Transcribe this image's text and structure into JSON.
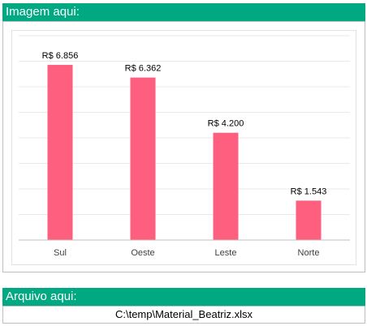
{
  "sections": {
    "image_header": "Imagem aqui:",
    "file_header": "Arquivo aqui:",
    "file_path": "C:\\temp\\Material_Beatriz.xlsx"
  },
  "colors": {
    "header_bg": "#00A982",
    "bar_fill": "#FF5F7E",
    "gridline": "#e9e9e9",
    "axis": "#bfbfbf"
  },
  "chart_data": {
    "type": "bar",
    "categories": [
      "Sul",
      "Oeste",
      "Leste",
      "Norte"
    ],
    "values": [
      6856,
      6362,
      4200,
      1543
    ],
    "data_labels": [
      "R$ 6.856",
      "R$ 6.362",
      "R$ 4.200",
      "R$ 1.543"
    ],
    "title": "",
    "xlabel": "",
    "ylabel": "",
    "ylim": [
      0,
      8000
    ],
    "grid": true,
    "legend": "none"
  }
}
